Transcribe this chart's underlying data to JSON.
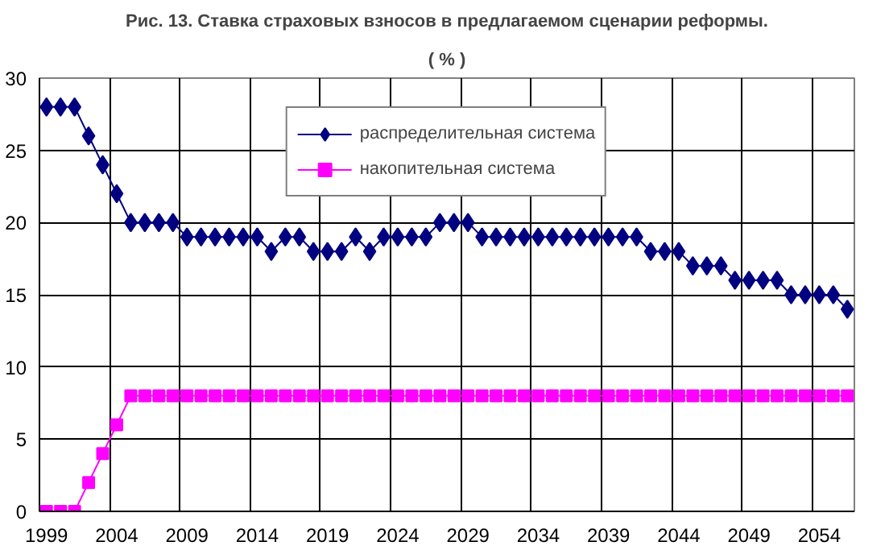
{
  "chart_data": {
    "type": "line",
    "title": "Рис. 13. Ставка страховых взносов в предлагаемом сценарии реформы.",
    "subtitle": "( % )",
    "categories": [
      "1999",
      null,
      null,
      null,
      null,
      "2004",
      null,
      null,
      null,
      null,
      "2009",
      null,
      null,
      null,
      null,
      "2014",
      null,
      null,
      null,
      null,
      "2019",
      null,
      null,
      null,
      null,
      "2024",
      null,
      null,
      null,
      null,
      "2029",
      null,
      null,
      null,
      null,
      "2034",
      null,
      null,
      null,
      null,
      "2039",
      null,
      null,
      null,
      null,
      "2044",
      null,
      null,
      null,
      null,
      "2049",
      null,
      null,
      null,
      null,
      "2054",
      null,
      null
    ],
    "series": [
      {
        "name": "распределительная система",
        "color": "#000080",
        "marker": "diamond",
        "values": [
          28,
          28,
          28,
          26,
          24,
          22,
          20,
          20,
          20,
          20,
          19,
          19,
          19,
          19,
          19,
          19,
          18,
          19,
          19,
          18,
          18,
          18,
          19,
          18,
          19,
          19,
          19,
          19,
          20,
          20,
          20,
          19,
          19,
          19,
          19,
          19,
          19,
          19,
          19,
          19,
          19,
          19,
          19,
          18,
          18,
          18,
          17,
          17,
          17,
          16,
          16,
          16,
          16,
          15,
          15,
          15,
          15,
          14
        ]
      },
      {
        "name": "накопительная система",
        "color": "#ff00ff",
        "marker": "square",
        "values": [
          0,
          0,
          0,
          2,
          4,
          6,
          8,
          8,
          8,
          8,
          8,
          8,
          8,
          8,
          8,
          8,
          8,
          8,
          8,
          8,
          8,
          8,
          8,
          8,
          8,
          8,
          8,
          8,
          8,
          8,
          8,
          8,
          8,
          8,
          8,
          8,
          8,
          8,
          8,
          8,
          8,
          8,
          8,
          8,
          8,
          8,
          8,
          8,
          8,
          8,
          8,
          8,
          8,
          8,
          8,
          8,
          8,
          8
        ]
      }
    ],
    "ylim": [
      0,
      30
    ],
    "yticks": [
      0,
      5,
      10,
      15,
      20,
      25,
      30
    ],
    "grid": true,
    "legend": "top"
  }
}
